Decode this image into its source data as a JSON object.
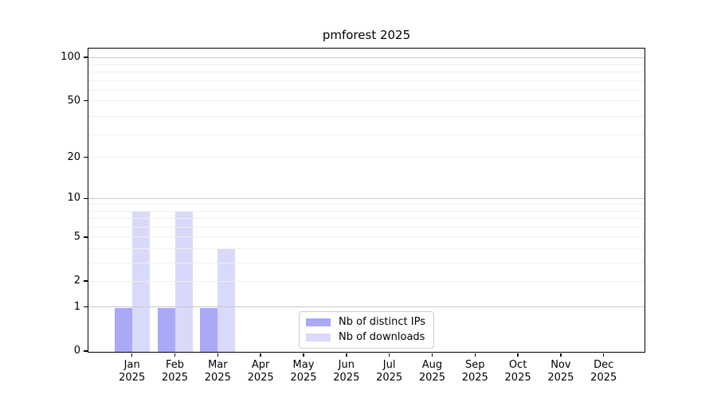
{
  "chart_data": {
    "type": "bar",
    "title": "pmforest 2025",
    "xlabel": "",
    "ylabel": "",
    "categories": [
      "Jan",
      "Feb",
      "Mar",
      "Apr",
      "May",
      "Jun",
      "Jul",
      "Aug",
      "Sep",
      "Oct",
      "Nov",
      "Dec"
    ],
    "category_year": "2025",
    "series": [
      {
        "name": "Nb of distinct IPs",
        "color": "#a9a9f8",
        "values": [
          1,
          1,
          1,
          0,
          0,
          0,
          0,
          0,
          0,
          0,
          0,
          0
        ]
      },
      {
        "name": "Nb of downloads",
        "color": "#d9d9f9",
        "values": [
          8,
          8,
          4,
          0,
          0,
          0,
          0,
          0,
          0,
          0,
          0,
          0
        ]
      }
    ],
    "yscale": "log1p",
    "yticks": [
      0,
      1,
      2,
      5,
      10,
      20,
      50,
      100
    ],
    "ylim": [
      0,
      115
    ],
    "grid": true,
    "grid_major_values": [
      1,
      10,
      100
    ],
    "grid_minor_values": [
      2,
      3,
      4,
      5,
      6,
      7,
      8,
      9,
      20,
      29,
      39,
      50,
      59,
      69,
      79,
      89
    ],
    "grid_major_color": "#c9c9c9",
    "grid_minor_color": "#f0f0f0",
    "legend_position": "lower center",
    "axis_color": "#000000",
    "background_color": "#ffffff"
  }
}
